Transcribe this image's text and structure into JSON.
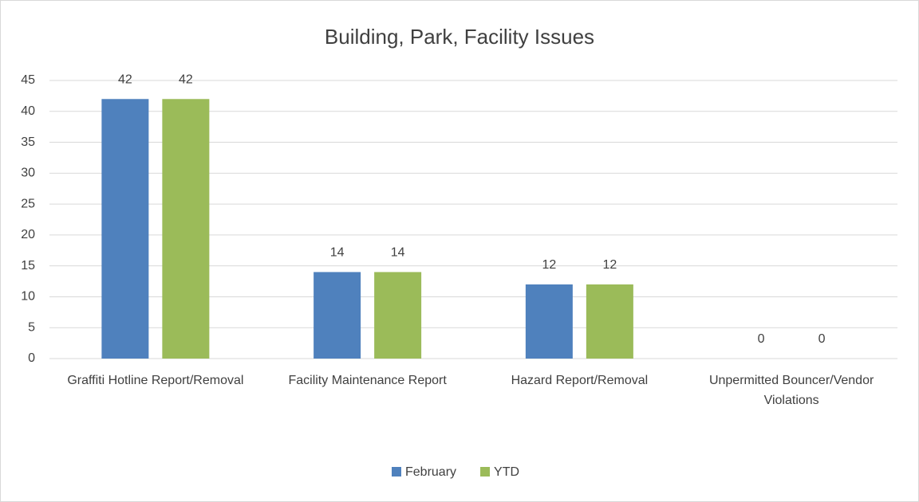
{
  "chart_data": {
    "type": "bar",
    "title": "Building, Park, Facility Issues",
    "categories": [
      "Graffiti Hotline Report/Removal",
      "Facility Maintenance Report",
      "Hazard Report/Removal",
      "Unpermitted Bouncer/Vendor Violations"
    ],
    "series": [
      {
        "name": "February",
        "color": "#4f81bd",
        "values": [
          42,
          14,
          12,
          0
        ]
      },
      {
        "name": "YTD",
        "color": "#9bbb59",
        "values": [
          42,
          14,
          12,
          0
        ]
      }
    ],
    "ylim": [
      0,
      45
    ],
    "yticks": [
      0,
      5,
      10,
      15,
      20,
      25,
      30,
      35,
      40,
      45
    ],
    "grid": true,
    "legend": "bottom"
  }
}
